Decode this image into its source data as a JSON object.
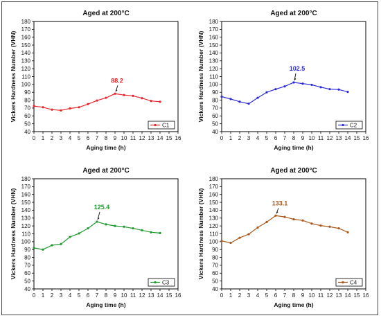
{
  "chart_data": [
    {
      "type": "line",
      "title": "Aged at 200°C",
      "xlabel": "Aging time (h)",
      "ylabel": "Vickers Hardness Number (VHN)",
      "xlim": [
        0,
        16
      ],
      "ylim": [
        40,
        180
      ],
      "x_ticks": [
        0,
        1,
        2,
        3,
        4,
        5,
        6,
        7,
        8,
        9,
        10,
        11,
        12,
        13,
        14,
        15,
        16
      ],
      "y_ticks": [
        40,
        50,
        60,
        70,
        80,
        90,
        100,
        110,
        120,
        130,
        140,
        150,
        160,
        170,
        180
      ],
      "legend_position": "bottom-right",
      "series": [
        {
          "name": "C1",
          "color": "#e8252b",
          "x": [
            0,
            1,
            2,
            3,
            4,
            5,
            6,
            7,
            8,
            9,
            10,
            11,
            12,
            13,
            14
          ],
          "y": [
            72.5,
            71,
            68,
            67,
            69.5,
            71,
            75,
            79.5,
            83,
            88.2,
            86.5,
            85.5,
            82.5,
            79,
            78
          ]
        }
      ],
      "peak_label": "88.2",
      "peak_x": 9,
      "peak_y": 88.2,
      "peak_color": "#e8252b"
    },
    {
      "type": "line",
      "title": "Aged at 200°C",
      "xlabel": "Aging time (h)",
      "ylabel": "Vickers Hardness Number (VHN)",
      "xlim": [
        0,
        16
      ],
      "ylim": [
        40,
        180
      ],
      "x_ticks": [
        0,
        1,
        2,
        3,
        4,
        5,
        6,
        7,
        8,
        9,
        10,
        11,
        12,
        13,
        14,
        15,
        16
      ],
      "y_ticks": [
        40,
        50,
        60,
        70,
        80,
        90,
        100,
        110,
        120,
        130,
        140,
        150,
        160,
        170,
        180
      ],
      "legend_position": "bottom-right",
      "series": [
        {
          "name": "C2",
          "color": "#2a2ad8",
          "x": [
            0,
            1,
            2,
            3,
            4,
            5,
            6,
            7,
            8,
            9,
            10,
            11,
            12,
            13,
            14
          ],
          "y": [
            84.5,
            81.5,
            78,
            75.5,
            83,
            90,
            94,
            97.5,
            102.5,
            101,
            99.5,
            96.5,
            94,
            93.5,
            90.5
          ]
        }
      ],
      "peak_label": "102.5",
      "peak_x": 8,
      "peak_y": 102.5,
      "peak_color": "#2a2ad8"
    },
    {
      "type": "line",
      "title": "Aged at 200°C",
      "xlabel": "Aging time (h)",
      "ylabel": "Vickers Hardness Number (VHN)",
      "xlim": [
        0,
        16
      ],
      "ylim": [
        40,
        180
      ],
      "x_ticks": [
        0,
        1,
        2,
        3,
        4,
        5,
        6,
        7,
        8,
        9,
        10,
        11,
        12,
        13,
        14,
        15,
        16
      ],
      "y_ticks": [
        40,
        50,
        60,
        70,
        80,
        90,
        100,
        110,
        120,
        130,
        140,
        150,
        160,
        170,
        180
      ],
      "legend_position": "bottom-right",
      "series": [
        {
          "name": "C3",
          "color": "#1f9a2e",
          "x": [
            0,
            1,
            2,
            3,
            4,
            5,
            6,
            7,
            8,
            9,
            10,
            11,
            12,
            13,
            14
          ],
          "y": [
            92,
            90,
            95.5,
            97,
            106,
            110.5,
            117,
            125.4,
            122,
            120,
            119,
            117,
            114.5,
            112,
            111
          ]
        }
      ],
      "peak_label": "125.4",
      "peak_x": 7,
      "peak_y": 125.4,
      "peak_color": "#1f9a2e"
    },
    {
      "type": "line",
      "title": "Aged at 200°C",
      "xlabel": "Aging time (h)",
      "ylabel": "Vickers Hardness Number (VHN)",
      "xlim": [
        0,
        16
      ],
      "ylim": [
        40,
        180
      ],
      "x_ticks": [
        0,
        1,
        2,
        3,
        4,
        5,
        6,
        7,
        8,
        9,
        10,
        11,
        12,
        13,
        14,
        15,
        16
      ],
      "y_ticks": [
        40,
        50,
        60,
        70,
        80,
        90,
        100,
        110,
        120,
        130,
        140,
        150,
        160,
        170,
        180
      ],
      "legend_position": "bottom-right",
      "series": [
        {
          "name": "C4",
          "color": "#a8561b",
          "x": [
            0,
            1,
            2,
            3,
            4,
            5,
            6,
            7,
            8,
            9,
            10,
            11,
            12,
            13,
            14
          ],
          "y": [
            101,
            98.5,
            105,
            109.5,
            118,
            125,
            133.1,
            131.5,
            128.5,
            127,
            123,
            120.5,
            119,
            117,
            112
          ]
        }
      ],
      "peak_label": "133.1",
      "peak_x": 6,
      "peak_y": 133.1,
      "peak_color": "#a8561b"
    }
  ]
}
